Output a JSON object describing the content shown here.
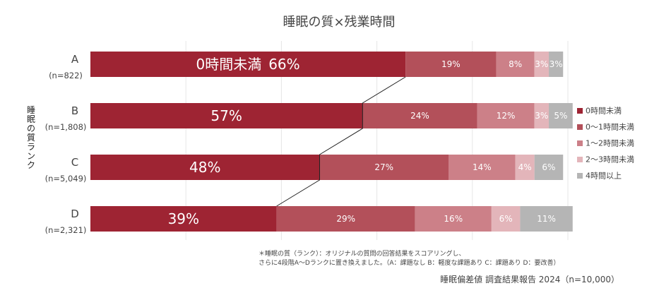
{
  "chart_data": {
    "type": "bar",
    "orientation": "horizontal",
    "stacked": true,
    "percent": true,
    "title": "睡眠の質×残業時間",
    "ylabel": "睡眠の質ランク",
    "xlim": [
      0,
      100
    ],
    "grid": true,
    "legend_position": "right",
    "categories": [
      "A",
      "B",
      "C",
      "D"
    ],
    "sample_sizes": [
      "(n=822)",
      "(n=1,808)",
      "(n=5,049)",
      "(n=2,321)"
    ],
    "series": [
      {
        "name": "0時間未満",
        "color": "#9e2433",
        "values": [
          66,
          57,
          48,
          39
        ],
        "labels": [
          "66%",
          "57%",
          "48%",
          "39%"
        ]
      },
      {
        "name": "0～1時間未満",
        "color": "#b3505a",
        "values": [
          19,
          24,
          27,
          29
        ],
        "labels": [
          "19%",
          "24%",
          "27%",
          "29%"
        ]
      },
      {
        "name": "1～2時間未満",
        "color": "#cc8088",
        "values": [
          8,
          12,
          14,
          16
        ],
        "labels": [
          "8%",
          "12%",
          "14%",
          "16%"
        ]
      },
      {
        "name": "2～3時間未満",
        "color": "#e3b5ba",
        "values": [
          3,
          3,
          4,
          6
        ],
        "labels": [
          "3%",
          "3%",
          "4%",
          "6%"
        ]
      },
      {
        "name": "4時間以上",
        "color": "#b5b5b5",
        "values": [
          3,
          5,
          6,
          11
        ],
        "labels": [
          "3%",
          "5%",
          "6%",
          "11%"
        ]
      }
    ],
    "first_bar_prefix": "0時間未満",
    "connector": "series-0-right-edge",
    "notes": [
      "＊睡眠の質（ランク）：オリジナルの質問の回答結果をスコアリングし、",
      "さらに4段階A～Dランクに置き換えました。（A：課題なし B：軽度な課題あり C：課題あり D：要改善）"
    ],
    "source": "睡眠偏差値 調査結果報告 2024（n=10,000）"
  }
}
